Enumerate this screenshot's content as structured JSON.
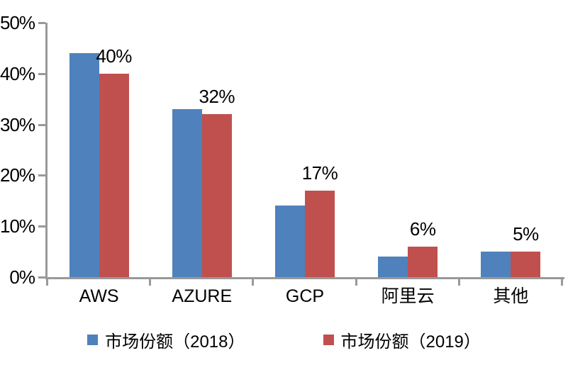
{
  "chart_data": {
    "type": "bar",
    "title": "",
    "xlabel": "",
    "ylabel": "",
    "categories": [
      "AWS",
      "AZURE",
      "GCP",
      "阿里云",
      "其他"
    ],
    "series": [
      {
        "name": "市场份额（2018）",
        "color": "#4F81BD",
        "values": [
          44,
          33,
          14,
          4,
          5
        ]
      },
      {
        "name": "市场份额（2019）",
        "color": "#C0504D",
        "values": [
          40,
          32,
          17,
          6,
          5
        ]
      }
    ],
    "data_labels": {
      "labeled_series": "市场份额（2019）",
      "values": [
        "40%",
        "32%",
        "17%",
        "6%",
        "5%"
      ]
    },
    "ylim": [
      0,
      50
    ],
    "yticks": [
      0,
      10,
      20,
      30,
      40,
      50
    ],
    "ytick_labels": [
      "0%",
      "10%",
      "20%",
      "30%",
      "40%",
      "50%"
    ],
    "grid": false,
    "legend_position": "bottom",
    "colors": {
      "background": "#FFFFFF",
      "axis": "#999999",
      "text": "#000000",
      "series_2018": "#4F81BD",
      "series_2019": "#C0504D"
    }
  }
}
